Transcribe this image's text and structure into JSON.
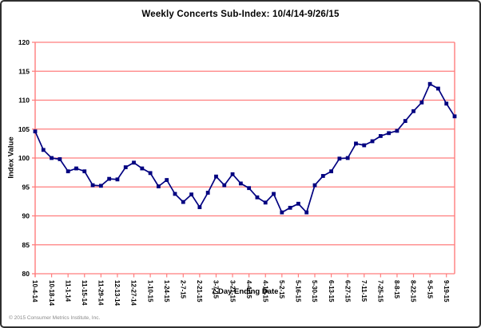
{
  "title": "Weekly Concerts Sub-Index: 10/4/14-9/26/15",
  "copyright": "© 2015 Consumer Metrics Institute, Inc.",
  "chart_data": {
    "type": "line",
    "title": "Weekly Concerts Sub-Index: 10/4/14-9/26/15",
    "xlabel": "7-Day Ending Date",
    "ylabel": "Index Value",
    "ylim": [
      80,
      120
    ],
    "yticks": [
      80,
      85,
      90,
      95,
      100,
      105,
      110,
      115,
      120
    ],
    "grid": "horizontal",
    "legend": "none",
    "x_label_interval": 2,
    "series_name": "Weekly Concerts Sub-Index",
    "line_color": "#000080",
    "grid_color": "#ff7d7d",
    "marker": "square",
    "x": [
      "10-4-14",
      "10-11-14",
      "10-18-14",
      "10-25-14",
      "11-1-14",
      "11-8-14",
      "11-15-14",
      "11-22-14",
      "11-29-14",
      "12-6-14",
      "12-13-14",
      "12-20-14",
      "12-27-14",
      "1-3-15",
      "1-10-15",
      "1-17-15",
      "1-24-15",
      "1-31-15",
      "2-7-15",
      "2-14-15",
      "2-21-15",
      "2-28-15",
      "3-7-15",
      "3-14-15",
      "3-21-15",
      "3-28-15",
      "4-4-15",
      "4-11-15",
      "4-18-15",
      "4-25-15",
      "5-2-15",
      "5-9-15",
      "5-16-15",
      "5-23-15",
      "5-30-15",
      "6-6-15",
      "6-13-15",
      "6-20-15",
      "6-27-15",
      "7-4-15",
      "7-11-15",
      "7-18-15",
      "7-25-15",
      "8-1-15",
      "8-8-15",
      "8-15-15",
      "8-22-15",
      "8-29-15",
      "9-5-15",
      "9-12-15",
      "9-19-15",
      "9-26-15"
    ],
    "values": [
      104.6,
      101.4,
      100.0,
      99.8,
      97.7,
      98.2,
      97.7,
      95.3,
      95.2,
      96.4,
      96.3,
      98.4,
      99.2,
      98.2,
      97.4,
      95.1,
      96.2,
      93.8,
      92.4,
      93.7,
      91.5,
      94.0,
      96.8,
      95.3,
      97.2,
      95.6,
      94.8,
      93.2,
      92.3,
      93.8,
      90.6,
      91.4,
      92.1,
      90.6,
      95.3,
      96.9,
      97.7,
      99.9,
      100.0,
      102.5,
      102.2,
      102.9,
      103.8,
      104.3,
      104.7,
      106.4,
      108.1,
      109.6,
      112.8,
      112.0,
      109.4,
      107.2
    ]
  }
}
